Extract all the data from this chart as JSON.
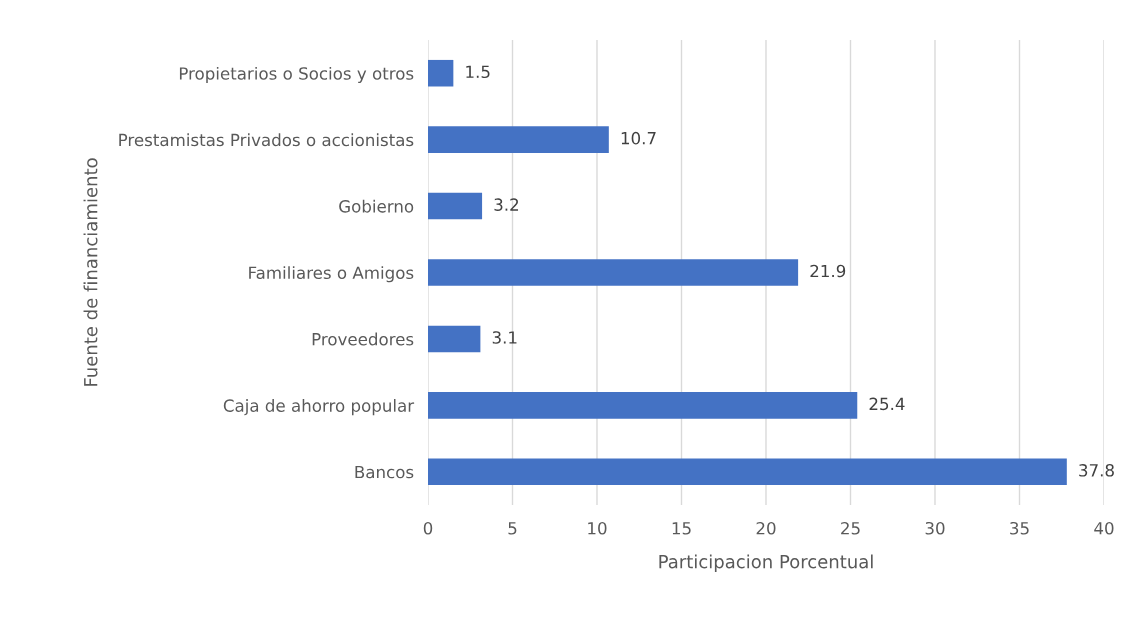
{
  "chart_data": {
    "type": "bar",
    "orientation": "horizontal",
    "xlabel": "Participacion Porcentual",
    "ylabel": "Fuente de financiamiento",
    "categories": [
      "Propietarios o Socios y otros",
      "Prestamistas Privados o accionistas",
      "Gobierno",
      "Familiares o Amigos",
      "Proveedores",
      "Caja de ahorro popular",
      "Bancos"
    ],
    "values": [
      1.5,
      10.7,
      3.2,
      21.9,
      3.1,
      25.4,
      37.8
    ],
    "color": "#4472c4",
    "xlim": [
      0,
      40
    ],
    "xticks": [
      0,
      5,
      10,
      15,
      20,
      25,
      30,
      35,
      40
    ],
    "grid": "x",
    "data_labels": true
  }
}
